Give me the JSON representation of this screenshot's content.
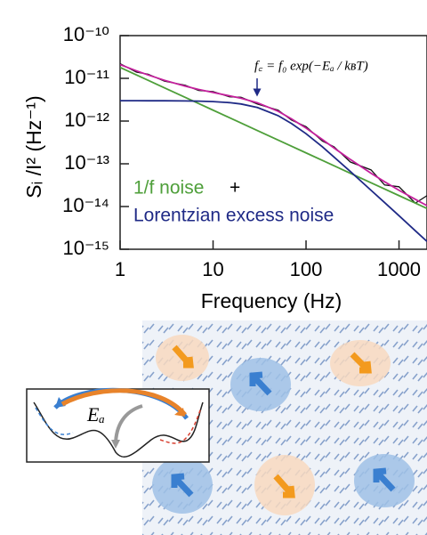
{
  "chart_data": {
    "type": "line",
    "x_label": "Frequency (Hz)",
    "y_label": "Sᵢ /I² (Hz⁻¹)",
    "annotation": "f꜀ = f₀ exp(−Eₐ / kʙT)",
    "legend_joiner": "+",
    "xscale": "log",
    "yscale": "log",
    "xlim": [
      1,
      2000
    ],
    "ylim": [
      1e-15,
      1e-10
    ],
    "xticks": [
      1,
      10,
      100,
      1000
    ],
    "yticks": [
      {
        "value": 1e-10,
        "label": "10⁻¹⁰"
      },
      {
        "value": 1e-11,
        "label": "10⁻¹¹"
      },
      {
        "value": 1e-12,
        "label": "10⁻¹²"
      },
      {
        "value": 1e-13,
        "label": "10⁻¹³"
      },
      {
        "value": 1e-14,
        "label": "10⁻¹⁴"
      },
      {
        "value": 1e-15,
        "label": "10⁻¹⁵"
      }
    ],
    "x": [
      1,
      1.5,
      2,
      3,
      5,
      7,
      10,
      15,
      20,
      30,
      50,
      70,
      100,
      150,
      200,
      300,
      500,
      700,
      1000,
      1500,
      2000
    ],
    "series": [
      {
        "color": "#111111",
        "values": [
          2.2e-11,
          1.4e-11,
          1.25e-11,
          8.6e-12,
          6.9e-12,
          5.2e-12,
          4.9e-12,
          3.7e-12,
          3.6e-12,
          2.5e-12,
          1.8e-12,
          1.05e-12,
          7.4e-13,
          3.4e-13,
          2.5e-13,
          1.1e-13,
          7.2e-14,
          3.2e-14,
          2.9e-14,
          1.2e-14,
          1.8e-14
        ]
      },
      {
        "name": "1/f noise",
        "color": "#4e9f3a",
        "values": [
          1.8e-11,
          1.2e-11,
          9e-12,
          6e-12,
          3.6e-12,
          2.57e-12,
          1.8e-12,
          1.2e-12,
          9e-13,
          6e-13,
          3.6e-13,
          2.57e-13,
          1.8e-13,
          1.2e-13,
          9e-14,
          6e-14,
          3.6e-14,
          2.57e-14,
          1.8e-14,
          1.2e-14,
          9e-15
        ]
      },
      {
        "name": "Lorentzian excess noise",
        "color": "#1f2a86",
        "values": [
          3e-12,
          3e-12,
          2.99e-12,
          2.99e-12,
          2.96e-12,
          2.93e-12,
          2.86e-12,
          2.7e-12,
          2.51e-12,
          2.08e-12,
          1.34e-12,
          8.7e-13,
          5.07e-13,
          2.5e-13,
          1.44e-13,
          6.6e-14,
          2.4e-14,
          1.24e-14,
          6.1e-15,
          2.7e-15,
          1.52e-15
        ]
      },
      {
        "color": "#c4209c",
        "values": [
          2.1e-11,
          1.5e-11,
          1.2e-11,
          9e-12,
          6.56e-12,
          5.5e-12,
          4.66e-12,
          3.9e-12,
          3.41e-12,
          2.68e-12,
          1.7e-12,
          1.12e-12,
          6.87e-13,
          3.7e-13,
          2.34e-13,
          1.26e-13,
          6e-14,
          3.8e-14,
          2.4e-14,
          1.47e-14,
          1.05e-14
        ]
      }
    ]
  },
  "illustration": {
    "barrier_label": "Eₐ"
  }
}
